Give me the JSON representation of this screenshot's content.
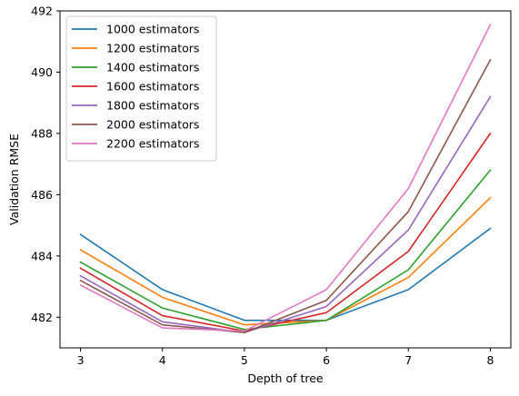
{
  "chart_data": {
    "type": "line",
    "xlabel": "Depth of tree",
    "ylabel": "Validation RMSE",
    "x": [
      3,
      4,
      5,
      6,
      7,
      8
    ],
    "xticks": [
      "3",
      "4",
      "5",
      "6",
      "7",
      "8"
    ],
    "yticks": [
      "482",
      "484",
      "486",
      "488",
      "490",
      "492"
    ],
    "ytick_values": [
      482,
      484,
      486,
      488,
      490,
      492
    ],
    "xlim": [
      2.75,
      8.25
    ],
    "ylim": [
      481.0,
      492.0
    ],
    "grid": false,
    "legend_position": "top-left",
    "series": [
      {
        "name": "1000 estimators",
        "color": "#1f77b4",
        "values": [
          484.7,
          482.9,
          481.9,
          481.9,
          482.9,
          484.9
        ]
      },
      {
        "name": "1200 estimators",
        "color": "#ff7f0e",
        "values": [
          484.2,
          482.65,
          481.75,
          481.9,
          483.3,
          485.9
        ]
      },
      {
        "name": "1400 estimators",
        "color": "#2ca02c",
        "values": [
          483.8,
          482.3,
          481.6,
          481.9,
          483.55,
          486.8
        ]
      },
      {
        "name": "1600 estimators",
        "color": "#d62728",
        "values": [
          483.6,
          482.05,
          481.55,
          482.15,
          484.15,
          488.0
        ]
      },
      {
        "name": "1800 estimators",
        "color": "#9467bd",
        "values": [
          483.35,
          481.85,
          481.5,
          482.35,
          484.85,
          489.2
        ]
      },
      {
        "name": "2000 estimators",
        "color": "#8c564b",
        "values": [
          483.2,
          481.75,
          481.5,
          482.55,
          485.45,
          490.4
        ]
      },
      {
        "name": "2200 estimators",
        "color": "#e377c2",
        "values": [
          483.05,
          481.65,
          481.55,
          482.9,
          486.2,
          491.55
        ]
      }
    ]
  }
}
